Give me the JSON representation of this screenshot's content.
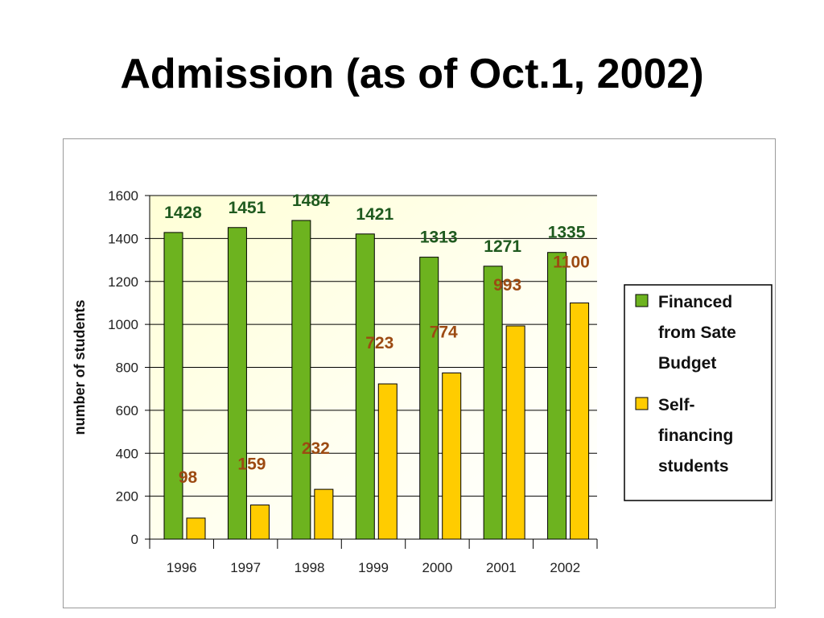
{
  "title": "Admission (as of Oct.1, 2002)",
  "chart_data": {
    "type": "bar",
    "categories": [
      "1996",
      "1997",
      "1998",
      "1999",
      "2000",
      "2001",
      "2002"
    ],
    "series": [
      {
        "name": "Financed from Sate Budget",
        "values": [
          1428,
          1451,
          1484,
          1421,
          1313,
          1271,
          1335
        ],
        "color": "#6db31f"
      },
      {
        "name": "Self-financing students",
        "values": [
          98,
          159,
          232,
          723,
          774,
          993,
          1100
        ],
        "color": "#ffcc00"
      }
    ],
    "legend_lines": [
      [
        "Financed",
        "from Sate",
        "Budget"
      ],
      [
        "Self-",
        "financing",
        "students"
      ]
    ],
    "ylabel": "number of students",
    "xlabel": "",
    "ylim": [
      0,
      1600
    ],
    "yticks": [
      0,
      200,
      400,
      600,
      800,
      1000,
      1200,
      1400,
      1600
    ],
    "grid": true,
    "legend_position": "right",
    "plot_background": "#ffffcc"
  }
}
